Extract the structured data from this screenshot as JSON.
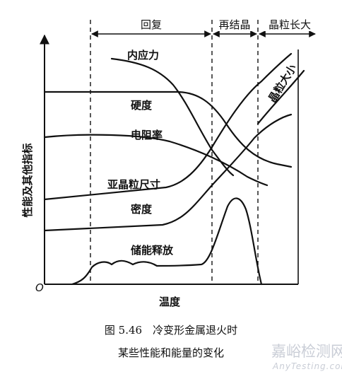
{
  "diagram": {
    "stages": [
      "回复",
      "再结晶",
      "晶粒长大"
    ],
    "y_axis_label": "性能及其他指标",
    "x_axis_label": "温度",
    "origin_label": "O",
    "curve_labels": {
      "internal_stress": "内应力",
      "hardness": "硬度",
      "resistivity": "电阻率",
      "subgrain_size": "亚晶粒尺寸",
      "density": "密度",
      "stored_energy_release": "储能释放",
      "grain_size": "晶粒大小"
    }
  },
  "caption": {
    "line1": "图 5.46　冷变形金属退火时",
    "line2": "某些性能和能量的变化"
  },
  "watermark": {
    "cn": "嘉峪检测网",
    "en": "AnyTesting.com"
  }
}
